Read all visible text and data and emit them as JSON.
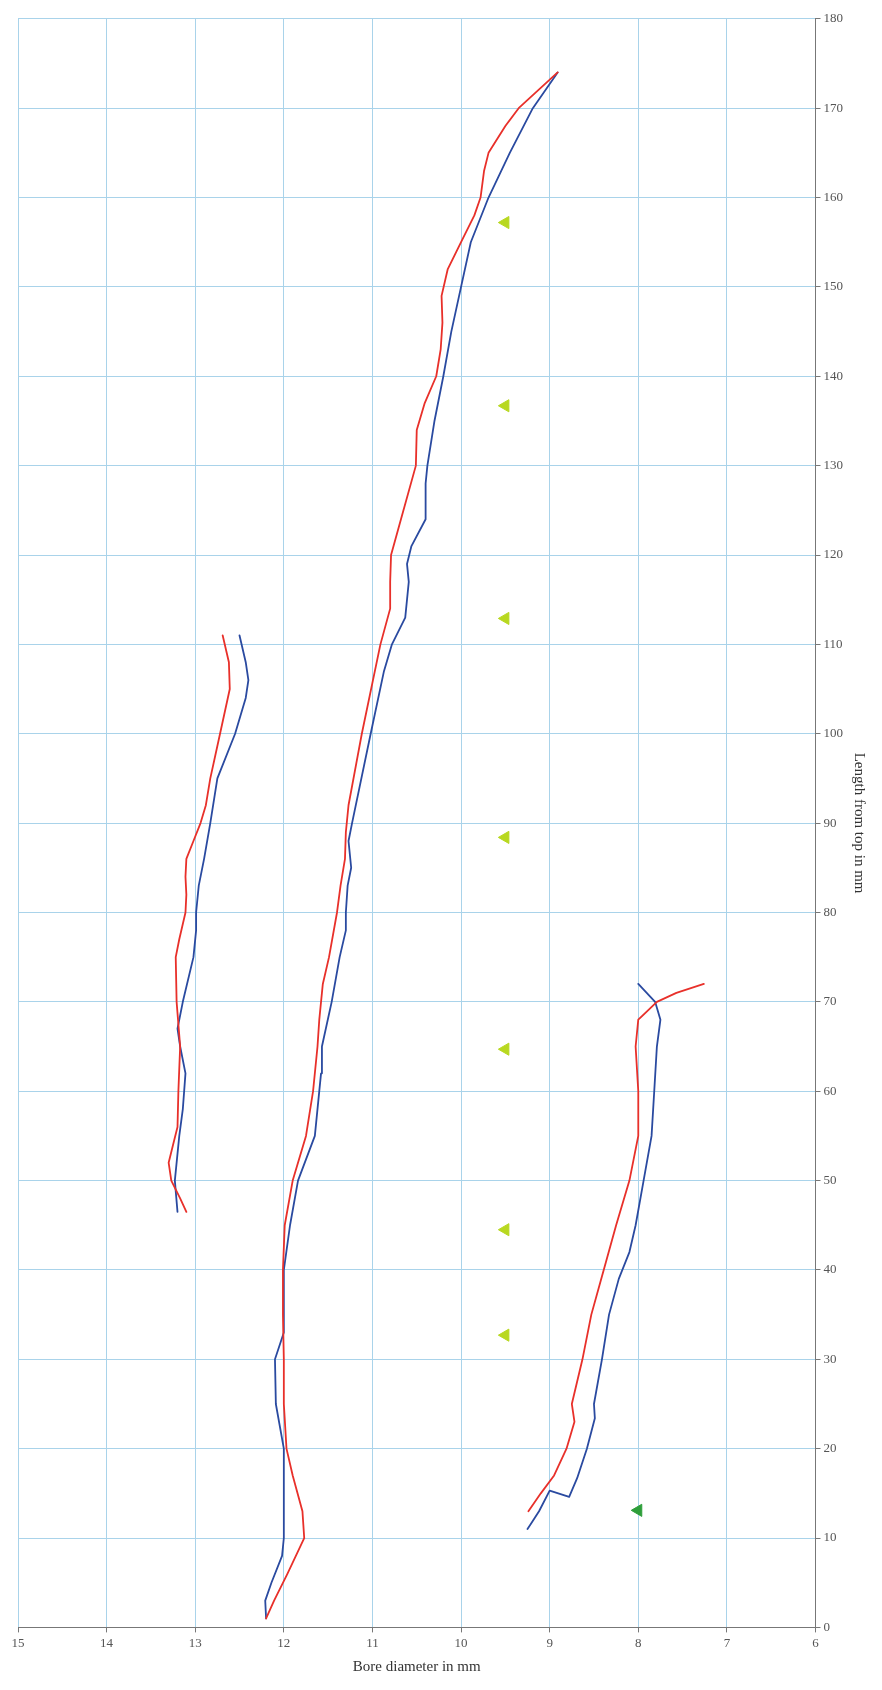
{
  "chart_data": {
    "type": "line",
    "xlabel": "Bore diameter in mm",
    "y2label": "Length from top in mm",
    "xlim": [
      15,
      6
    ],
    "xticks": [
      15,
      14,
      13,
      12,
      11,
      10,
      9,
      8,
      7,
      6
    ],
    "y2lim": [
      0,
      180
    ],
    "y2ticks": [
      0,
      10,
      20,
      30,
      40,
      50,
      60,
      70,
      80,
      90,
      100,
      110,
      120,
      130,
      140,
      150,
      160,
      170,
      180
    ],
    "grid": true,
    "series": [
      {
        "axis": "y2",
        "color": "#e8302a",
        "values": [
          1,
          3,
          6,
          10,
          13,
          17,
          20,
          25,
          30,
          35,
          40,
          45,
          50,
          55,
          60,
          65,
          68,
          72,
          75,
          80,
          83,
          86,
          89,
          92,
          100,
          110,
          114,
          117,
          120,
          125,
          130,
          134,
          137,
          140,
          143,
          146,
          149,
          152,
          155,
          158,
          160,
          163,
          165,
          168,
          170,
          174
        ],
        "x": [
          12.2,
          12.11,
          11.96,
          11.77,
          11.79,
          11.9,
          11.97,
          12.0,
          12.0,
          12.01,
          12.01,
          11.99,
          11.9,
          11.75,
          11.67,
          11.62,
          11.6,
          11.56,
          11.49,
          11.4,
          11.36,
          11.31,
          11.3,
          11.27,
          11.12,
          10.91,
          10.8,
          10.8,
          10.79,
          10.65,
          10.51,
          10.5,
          10.41,
          10.28,
          10.23,
          10.21,
          10.22,
          10.15,
          10.0,
          9.85,
          9.78,
          9.74,
          9.69,
          9.5,
          9.35,
          8.91
        ]
      },
      {
        "axis": "y2",
        "color": "#2a4aa0",
        "values": [
          1,
          3,
          5,
          8,
          10,
          20,
          25,
          30,
          33,
          40,
          45,
          50,
          55,
          60,
          62,
          65,
          70,
          75,
          78,
          80,
          83,
          85,
          88,
          90,
          100,
          107,
          110,
          113,
          117,
          119,
          121,
          124,
          128,
          130,
          135,
          140,
          145,
          150,
          155,
          160,
          165,
          170,
          174
        ],
        "x": [
          12.2,
          12.21,
          12.14,
          12.02,
          12.0,
          12.0,
          12.09,
          12.1,
          12.0,
          12.0,
          11.93,
          11.84,
          11.65,
          11.6,
          11.58,
          11.57,
          11.46,
          11.37,
          11.3,
          11.3,
          11.28,
          11.24,
          11.27,
          11.23,
          11.02,
          10.87,
          10.78,
          10.63,
          10.59,
          10.61,
          10.56,
          10.4,
          10.4,
          10.38,
          10.3,
          10.2,
          10.11,
          10.0,
          9.89,
          9.69,
          9.45,
          9.19,
          8.91
        ]
      },
      {
        "axis": "y2",
        "color": "#e8302a",
        "values": [
          46.5,
          48,
          50,
          52,
          54,
          56,
          60,
          65,
          70,
          75,
          77,
          80,
          82,
          84,
          86,
          88,
          90,
          92,
          95,
          100,
          105,
          108,
          111
        ],
        "x": [
          13.1,
          13.17,
          13.27,
          13.3,
          13.25,
          13.2,
          13.19,
          13.17,
          13.21,
          13.22,
          13.18,
          13.11,
          13.1,
          13.11,
          13.1,
          13.02,
          12.94,
          12.88,
          12.83,
          12.72,
          12.61,
          12.62,
          12.69
        ]
      },
      {
        "axis": "y2",
        "color": "#2a4aa0",
        "values": [
          46.5,
          50,
          55,
          58,
          62,
          65,
          67,
          70,
          75,
          78,
          80,
          83,
          86,
          90,
          95,
          100,
          104,
          106,
          108,
          111
        ],
        "x": [
          13.2,
          13.23,
          13.18,
          13.14,
          13.11,
          13.17,
          13.2,
          13.14,
          13.02,
          12.99,
          12.99,
          12.96,
          12.9,
          12.83,
          12.75,
          12.55,
          12.43,
          12.4,
          12.43,
          12.5
        ]
      },
      {
        "axis": "y2",
        "color": "#e8302a",
        "values": [
          13,
          15,
          17,
          20,
          23,
          25,
          30,
          35,
          40,
          45,
          50,
          55,
          60,
          65,
          68,
          70,
          71,
          72
        ],
        "x": [
          9.24,
          9.1,
          8.95,
          8.81,
          8.72,
          8.75,
          8.63,
          8.53,
          8.39,
          8.25,
          8.1,
          8.0,
          8.0,
          8.03,
          8.0,
          7.79,
          7.57,
          7.26
        ]
      },
      {
        "axis": "y2",
        "color": "#2a4aa0",
        "values": [
          11,
          13,
          15.3,
          14.6,
          16.7,
          20,
          23.4,
          25,
          30,
          35,
          39,
          42,
          45,
          50,
          55,
          60,
          65,
          68,
          70,
          72
        ],
        "x": [
          9.25,
          9.12,
          9.0,
          8.78,
          8.69,
          8.58,
          8.49,
          8.5,
          8.41,
          8.33,
          8.22,
          8.1,
          8.03,
          7.94,
          7.85,
          7.82,
          7.79,
          7.75,
          7.81,
          8.0
        ]
      },
      {
        "axis": "y2",
        "type": "scatter",
        "marker": "triangle",
        "color": "#b8d820",
        "values": [
          32.7,
          44.5,
          64.7,
          88.4,
          112.9,
          136.7,
          157.2
        ],
        "x": [
          9.5,
          9.5,
          9.5,
          9.5,
          9.5,
          9.5,
          9.5
        ]
      },
      {
        "axis": "y2",
        "type": "scatter",
        "marker": "triangle",
        "color": "#2e9e3a",
        "values": [
          13.1
        ],
        "x": [
          8
        ]
      }
    ]
  }
}
